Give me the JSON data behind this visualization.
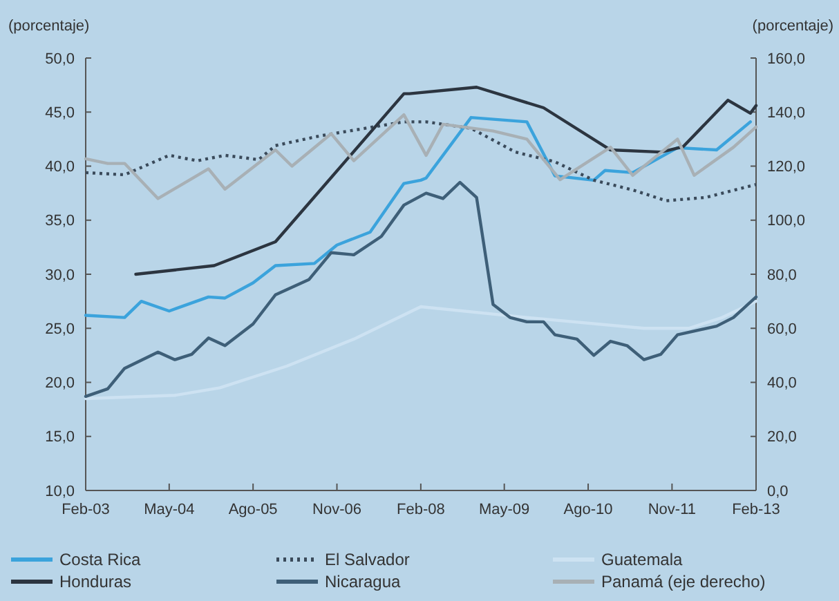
{
  "chart_data": {
    "type": "line",
    "ylabel": "(porcentaje)",
    "y2label": "(porcentaje)",
    "xlim": [
      "2003-02",
      "2013-02"
    ],
    "xticks": [
      {
        "value": "2003-02",
        "label": "Feb-03"
      },
      {
        "value": "2004-05",
        "label": "May-04"
      },
      {
        "value": "2005-08",
        "label": "Ago-05"
      },
      {
        "value": "2006-11",
        "label": "Nov-06"
      },
      {
        "value": "2008-02",
        "label": "Feb-08"
      },
      {
        "value": "2009-05",
        "label": "May-09"
      },
      {
        "value": "2010-08",
        "label": "Ago-10"
      },
      {
        "value": "2011-11",
        "label": "Nov-11"
      },
      {
        "value": "2013-02",
        "label": "Feb-13"
      }
    ],
    "ylim": [
      10,
      50
    ],
    "yticks": [
      {
        "value": 10,
        "label": "10,0"
      },
      {
        "value": 15,
        "label": "15,0"
      },
      {
        "value": 20,
        "label": "20,0"
      },
      {
        "value": 25,
        "label": "25,0"
      },
      {
        "value": 30,
        "label": "30,0"
      },
      {
        "value": 35,
        "label": "35,0"
      },
      {
        "value": 40,
        "label": "40,0"
      },
      {
        "value": 45,
        "label": "45,0"
      },
      {
        "value": 50,
        "label": "50,0"
      }
    ],
    "y2lim": [
      0,
      160
    ],
    "y2ticks": [
      {
        "value": 0,
        "label": "0,0"
      },
      {
        "value": 20,
        "label": "20,0"
      },
      {
        "value": 40,
        "label": "40,0"
      },
      {
        "value": 60,
        "label": "60,0"
      },
      {
        "value": 80,
        "label": "80,0"
      },
      {
        "value": 100,
        "label": "100,0"
      },
      {
        "value": 120,
        "label": "120,0"
      },
      {
        "value": 140,
        "label": "140,0"
      },
      {
        "value": 160,
        "label": "160,0"
      }
    ],
    "grid": false,
    "legend": "bottom",
    "marker": "none",
    "series": [
      {
        "name": "Costa Rica",
        "color": "#3ba3dc",
        "line_style": "solid",
        "x": [
          "2003-02",
          "2003-09",
          "2003-12",
          "2004-05",
          "2004-12",
          "2005-03",
          "2005-08",
          "2005-12",
          "2006-07",
          "2006-11",
          "2007-05",
          "2007-11",
          "2008-02",
          "2008-03",
          "2008-11",
          "2009-09",
          "2010-02",
          "2010-09",
          "2010-11",
          "2011-04",
          "2011-12",
          "2012-07",
          "2013-01"
        ],
        "values": [
          26.2,
          26.0,
          27.5,
          26.6,
          27.9,
          27.8,
          29.2,
          30.8,
          31.0,
          32.7,
          33.9,
          38.4,
          38.7,
          38.9,
          44.5,
          44.1,
          39.1,
          38.7,
          39.6,
          39.4,
          41.7,
          41.5,
          44.1
        ]
      },
      {
        "name": "El Salvador",
        "color": "#3a4a5a",
        "line_style": "dotted",
        "x": [
          "2003-02",
          "2003-09",
          "2004-05",
          "2004-10",
          "2005-03",
          "2005-09",
          "2005-12",
          "2006-08",
          "2007-11",
          "2008-03",
          "2008-11",
          "2009-07",
          "2010-02",
          "2010-09",
          "2011-04",
          "2011-10",
          "2012-05",
          "2013-02"
        ],
        "values": [
          39.4,
          39.2,
          41.0,
          40.5,
          41.0,
          40.6,
          41.9,
          42.8,
          44.1,
          44.1,
          43.5,
          41.3,
          40.4,
          38.7,
          37.8,
          36.8,
          37.1,
          38.3
        ]
      },
      {
        "name": "Guatemala",
        "color": "#cde2f2",
        "line_style": "solid",
        "x": [
          "2003-02",
          "2004-06",
          "2005-02",
          "2006-02",
          "2007-02",
          "2008-02",
          "2009-09",
          "2011-06",
          "2012-02",
          "2012-08",
          "2013-02"
        ],
        "values": [
          18.5,
          18.8,
          19.5,
          21.5,
          24.0,
          27.0,
          26.0,
          25.0,
          25.0,
          26.0,
          27.5
        ]
      },
      {
        "name": "Honduras",
        "color": "#2c3540",
        "line_style": "solid",
        "x": [
          "2003-11",
          "2005-01",
          "2005-12",
          "2007-11",
          "2007-12",
          "2008-12",
          "2009-12",
          "2010-12",
          "2011-09",
          "2012-01",
          "2012-09",
          "2013-01",
          "2013-02"
        ],
        "values": [
          30.0,
          30.8,
          33.0,
          46.7,
          46.7,
          47.3,
          45.4,
          41.5,
          41.3,
          41.8,
          46.1,
          44.9,
          45.6
        ]
      },
      {
        "name": "Nicaragua",
        "color": "#3e5f78",
        "line_style": "solid",
        "x": [
          "2003-02",
          "2003-06",
          "2003-09",
          "2004-03",
          "2004-06",
          "2004-09",
          "2004-12",
          "2005-03",
          "2005-08",
          "2005-12",
          "2006-06",
          "2006-10",
          "2007-02",
          "2007-07",
          "2007-11",
          "2008-03",
          "2008-06",
          "2008-09",
          "2008-12",
          "2009-03",
          "2009-06",
          "2009-09",
          "2009-12",
          "2010-02",
          "2010-06",
          "2010-09",
          "2010-12",
          "2011-03",
          "2011-06",
          "2011-09",
          "2011-12",
          "2012-07",
          "2012-10",
          "2013-02"
        ],
        "values": [
          18.7,
          19.4,
          21.3,
          22.8,
          22.1,
          22.6,
          24.1,
          23.4,
          25.4,
          28.1,
          29.5,
          32.0,
          31.8,
          33.5,
          36.4,
          37.5,
          37.0,
          38.5,
          37.1,
          27.2,
          26.0,
          25.6,
          25.6,
          24.4,
          24.0,
          22.5,
          23.8,
          23.4,
          22.1,
          22.6,
          24.4,
          25.2,
          26.0,
          27.9
        ]
      },
      {
        "name": "Panamá (eje derecho)",
        "color": "#a8b0b5",
        "line_style": "solid",
        "axis": "y2",
        "x": [
          "2003-02",
          "2003-06",
          "2003-09",
          "2004-03",
          "2004-12",
          "2005-03",
          "2005-12",
          "2006-03",
          "2006-10",
          "2007-02",
          "2007-11",
          "2008-03",
          "2008-06",
          "2009-03",
          "2009-09",
          "2010-03",
          "2010-12",
          "2011-04",
          "2011-12",
          "2012-03",
          "2012-10",
          "2013-02"
        ],
        "values": [
          122.7,
          121,
          121,
          108,
          119,
          111.5,
          126,
          120,
          132,
          122,
          139,
          124,
          135.5,
          133,
          130,
          115,
          127,
          116.6,
          130,
          116.6,
          127,
          134.5
        ]
      }
    ]
  }
}
